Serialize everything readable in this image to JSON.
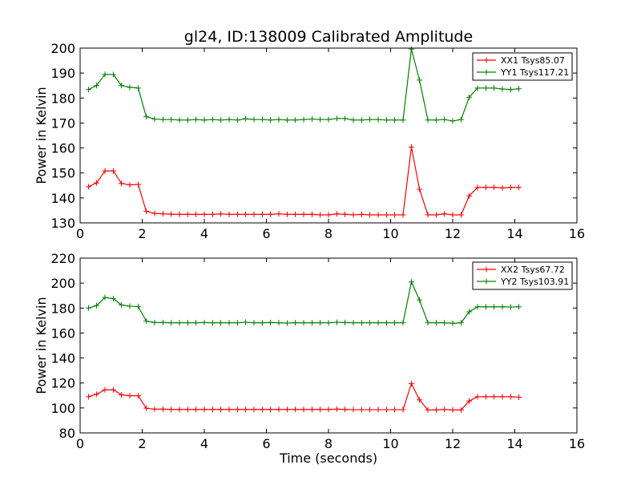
{
  "title": "gl24, ID:138009 Calibrated Amplitude",
  "chart_data": [
    {
      "type": "line",
      "title": "gl24, ID:138009 Calibrated Amplitude",
      "xlabel": "",
      "ylabel": "Power in Kelvin",
      "xlim": [
        0,
        16
      ],
      "ylim": [
        130,
        200
      ],
      "xticks": [
        0,
        2,
        4,
        6,
        8,
        10,
        12,
        14,
        16
      ],
      "yticks": [
        130,
        140,
        150,
        160,
        170,
        180,
        190,
        200
      ],
      "legend_position": "top-right",
      "series": [
        {
          "name": "XX1 Tsys85.07",
          "color": "#ff0000",
          "x": [
            0.27,
            0.53,
            0.8,
            1.07,
            1.33,
            1.6,
            1.87,
            2.13,
            2.4,
            2.67,
            2.93,
            3.2,
            3.47,
            3.73,
            4.0,
            4.27,
            4.53,
            4.8,
            5.07,
            5.33,
            5.6,
            5.87,
            6.13,
            6.4,
            6.67,
            6.93,
            7.2,
            7.47,
            7.73,
            8.0,
            8.27,
            8.53,
            8.8,
            9.07,
            9.33,
            9.6,
            9.87,
            10.13,
            10.4,
            10.67,
            10.93,
            11.2,
            11.47,
            11.73,
            12.0,
            12.27,
            12.53,
            12.8,
            13.07,
            13.33,
            13.6,
            13.87,
            14.13
          ],
          "y": [
            144.5,
            146,
            150.8,
            150.8,
            145.8,
            145.2,
            145.4,
            134.6,
            133.8,
            133.6,
            133.5,
            133.4,
            133.4,
            133.4,
            133.4,
            133.4,
            133.6,
            133.4,
            133.4,
            133.4,
            133.4,
            133.4,
            133.4,
            133.6,
            133.4,
            133.4,
            133.4,
            133.4,
            133.2,
            133.2,
            133.6,
            133.4,
            133.2,
            133.4,
            133.2,
            133.2,
            133.2,
            133.2,
            133.2,
            160.4,
            143.5,
            133.2,
            133.2,
            133.6,
            133.2,
            133.2,
            140.8,
            144.2,
            144.2,
            144.2,
            144.0,
            144.2,
            144.2
          ]
        },
        {
          "name": "YY1 Tsys117.21",
          "color": "#008000",
          "x": [
            0.27,
            0.53,
            0.8,
            1.07,
            1.33,
            1.6,
            1.87,
            2.13,
            2.4,
            2.67,
            2.93,
            3.2,
            3.47,
            3.73,
            4.0,
            4.27,
            4.53,
            4.8,
            5.07,
            5.33,
            5.6,
            5.87,
            6.13,
            6.4,
            6.67,
            6.93,
            7.2,
            7.47,
            7.73,
            8.0,
            8.27,
            8.53,
            8.8,
            9.07,
            9.33,
            9.6,
            9.87,
            10.13,
            10.4,
            10.67,
            10.93,
            11.2,
            11.47,
            11.73,
            12.0,
            12.27,
            12.53,
            12.8,
            13.07,
            13.33,
            13.6,
            13.87,
            14.13
          ],
          "y": [
            183.4,
            185,
            189.5,
            189.4,
            185,
            184.3,
            184,
            172.5,
            171.6,
            171.4,
            171.4,
            171.2,
            171.2,
            171.4,
            171.2,
            171.4,
            171.2,
            171.4,
            171.2,
            171.7,
            171.4,
            171.4,
            171.2,
            171.4,
            171.2,
            171.2,
            171.4,
            171.6,
            171.4,
            171.4,
            171.8,
            171.8,
            171.2,
            171.2,
            171.4,
            171.4,
            171.2,
            171.2,
            171.2,
            199.6,
            187.2,
            171.2,
            171.2,
            171.4,
            170.8,
            171.4,
            180.3,
            184,
            184,
            184,
            183.6,
            183.4,
            183.7
          ]
        }
      ]
    },
    {
      "type": "line",
      "title": "",
      "xlabel": "Time (seconds)",
      "ylabel": "Power in Kelvin",
      "xlim": [
        0,
        16
      ],
      "ylim": [
        80,
        220
      ],
      "xticks": [
        0,
        2,
        4,
        6,
        8,
        10,
        12,
        14,
        16
      ],
      "yticks": [
        80,
        100,
        120,
        140,
        160,
        180,
        200,
        220
      ],
      "legend_position": "top-right",
      "series": [
        {
          "name": "XX2 Tsys67.72",
          "color": "#ff0000",
          "x": [
            0.27,
            0.53,
            0.8,
            1.07,
            1.33,
            1.6,
            1.87,
            2.13,
            2.4,
            2.67,
            2.93,
            3.2,
            3.47,
            3.73,
            4.0,
            4.27,
            4.53,
            4.8,
            5.07,
            5.33,
            5.6,
            5.87,
            6.13,
            6.4,
            6.67,
            6.93,
            7.2,
            7.47,
            7.73,
            8.0,
            8.27,
            8.53,
            8.8,
            9.07,
            9.33,
            9.6,
            9.87,
            10.13,
            10.4,
            10.67,
            10.93,
            11.2,
            11.47,
            11.73,
            12.0,
            12.27,
            12.53,
            12.8,
            13.07,
            13.33,
            13.6,
            13.87,
            14.13
          ],
          "y": [
            109,
            111,
            114.5,
            114.5,
            110.5,
            109.8,
            109.8,
            99.8,
            99,
            99,
            98.8,
            98.8,
            98.8,
            98.8,
            98.8,
            98.8,
            98.8,
            98.8,
            98.8,
            98.8,
            98.8,
            98.8,
            98.8,
            98.8,
            98.8,
            98.8,
            98.8,
            98.8,
            98.8,
            98.8,
            99,
            98.8,
            98.6,
            98.6,
            98.6,
            98.6,
            98.6,
            98.6,
            98.6,
            119.6,
            106.5,
            98.4,
            98.4,
            98.8,
            98.4,
            98.4,
            105.5,
            109,
            109,
            109,
            109,
            109,
            108.6
          ]
        },
        {
          "name": "YY2 Tsys103.91",
          "color": "#008000",
          "x": [
            0.27,
            0.53,
            0.8,
            1.07,
            1.33,
            1.6,
            1.87,
            2.13,
            2.4,
            2.67,
            2.93,
            3.2,
            3.47,
            3.73,
            4.0,
            4.27,
            4.53,
            4.8,
            5.07,
            5.33,
            5.6,
            5.87,
            6.13,
            6.4,
            6.67,
            6.93,
            7.2,
            7.47,
            7.73,
            8.0,
            8.27,
            8.53,
            8.8,
            9.07,
            9.33,
            9.6,
            9.87,
            10.13,
            10.4,
            10.67,
            10.93,
            11.2,
            11.47,
            11.73,
            12.0,
            12.27,
            12.53,
            12.8,
            13.07,
            13.33,
            13.6,
            13.87,
            14.13
          ],
          "y": [
            180,
            182,
            188.5,
            187.5,
            182.5,
            181.5,
            181.2,
            169.6,
            168.4,
            168.4,
            168.2,
            168.2,
            168.2,
            168.2,
            168.4,
            168.2,
            168.2,
            168.2,
            168.2,
            168.6,
            168.2,
            168.2,
            168.4,
            168.2,
            168,
            168.2,
            168.2,
            168.2,
            168.2,
            168.2,
            168.6,
            168.4,
            168.2,
            168.2,
            168.2,
            168.2,
            168.2,
            168.2,
            168.2,
            201,
            186.5,
            168.2,
            168.2,
            168.2,
            167.8,
            168.2,
            177,
            181,
            181,
            181,
            181,
            180.8,
            181
          ]
        }
      ]
    }
  ]
}
